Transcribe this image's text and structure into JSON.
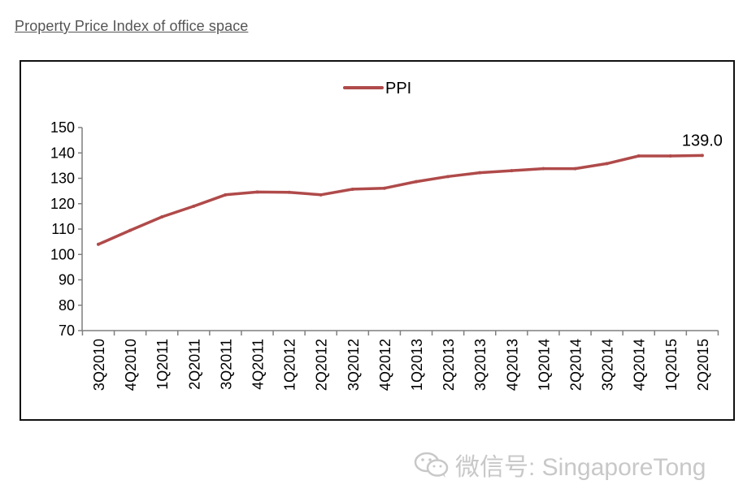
{
  "page": {
    "heading": "Property Price Index of office space"
  },
  "watermark": {
    "text": "微信号: SingaporeTong",
    "icon": "wechat-logo-icon"
  },
  "colors": {
    "series_line": "#b04a4a",
    "axis": "#7f7f7f",
    "frame": "#111111"
  },
  "chart_data": {
    "type": "line",
    "title": "",
    "xlabel": "",
    "ylabel": "",
    "categories": [
      "3Q2010",
      "4Q2010",
      "1Q2011",
      "2Q2011",
      "3Q2011",
      "4Q2011",
      "1Q2012",
      "2Q2012",
      "3Q2012",
      "4Q2012",
      "1Q2013",
      "2Q2013",
      "3Q2013",
      "4Q2013",
      "1Q2014",
      "2Q2014",
      "3Q2014",
      "4Q2014",
      "1Q2015",
      "2Q2015"
    ],
    "series": [
      {
        "name": "PPI",
        "values": [
          104.0,
          109.5,
          114.8,
          119.0,
          123.5,
          124.6,
          124.5,
          123.5,
          125.7,
          126.1,
          128.7,
          130.7,
          132.2,
          133.0,
          133.8,
          133.8,
          135.8,
          138.8,
          138.8,
          139.0
        ]
      }
    ],
    "ylim": [
      70,
      150
    ],
    "yticks": [
      "70",
      "80",
      "90",
      "100",
      "110",
      "120",
      "130",
      "140",
      "150"
    ],
    "grid": false,
    "legend_position": "top-center",
    "annotations": [
      {
        "category": "2Q2015",
        "text": "139.0"
      }
    ]
  }
}
